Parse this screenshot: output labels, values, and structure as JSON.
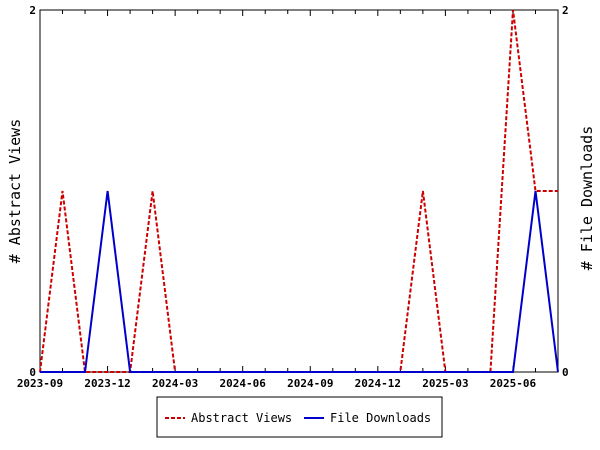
{
  "chart_data": {
    "type": "line",
    "x": [
      "2023-09",
      "2023-10",
      "2023-11",
      "2023-12",
      "2024-01",
      "2024-02",
      "2024-03",
      "2024-04",
      "2024-05",
      "2024-06",
      "2024-07",
      "2024-08",
      "2024-09",
      "2024-10",
      "2024-11",
      "2024-12",
      "2025-01",
      "2025-02",
      "2025-03",
      "2025-04",
      "2025-05",
      "2025-06",
      "2025-07",
      "2025-08"
    ],
    "x_tick_labels": [
      "2023-09",
      "2023-12",
      "2024-03",
      "2024-06",
      "2024-09",
      "2024-12",
      "2025-03",
      "2025-06"
    ],
    "series": [
      {
        "name": "Abstract Views",
        "axis": "left",
        "color": "#cc0000",
        "dash": "dashed",
        "values": [
          0,
          1,
          0,
          0,
          0,
          1,
          0,
          0,
          0,
          0,
          0,
          0,
          0,
          0,
          0,
          0,
          0,
          1,
          0,
          0,
          0,
          2,
          1,
          1
        ]
      },
      {
        "name": "File Downloads",
        "axis": "right",
        "color": "#0000cc",
        "dash": "solid",
        "values": [
          0,
          0,
          0,
          1,
          0,
          0,
          0,
          0,
          0,
          0,
          0,
          0,
          0,
          0,
          0,
          0,
          0,
          0,
          0,
          0,
          0,
          0,
          1,
          0
        ]
      }
    ],
    "ylabel": "# Abstract Views",
    "y2label": "# File Downloads",
    "ylim": [
      0,
      2
    ],
    "y2lim": [
      0,
      2
    ],
    "y_ticks": [
      "0",
      "2"
    ],
    "y2_ticks": [
      "0",
      "2"
    ],
    "grid": false,
    "legend_position": "bottom-center"
  }
}
